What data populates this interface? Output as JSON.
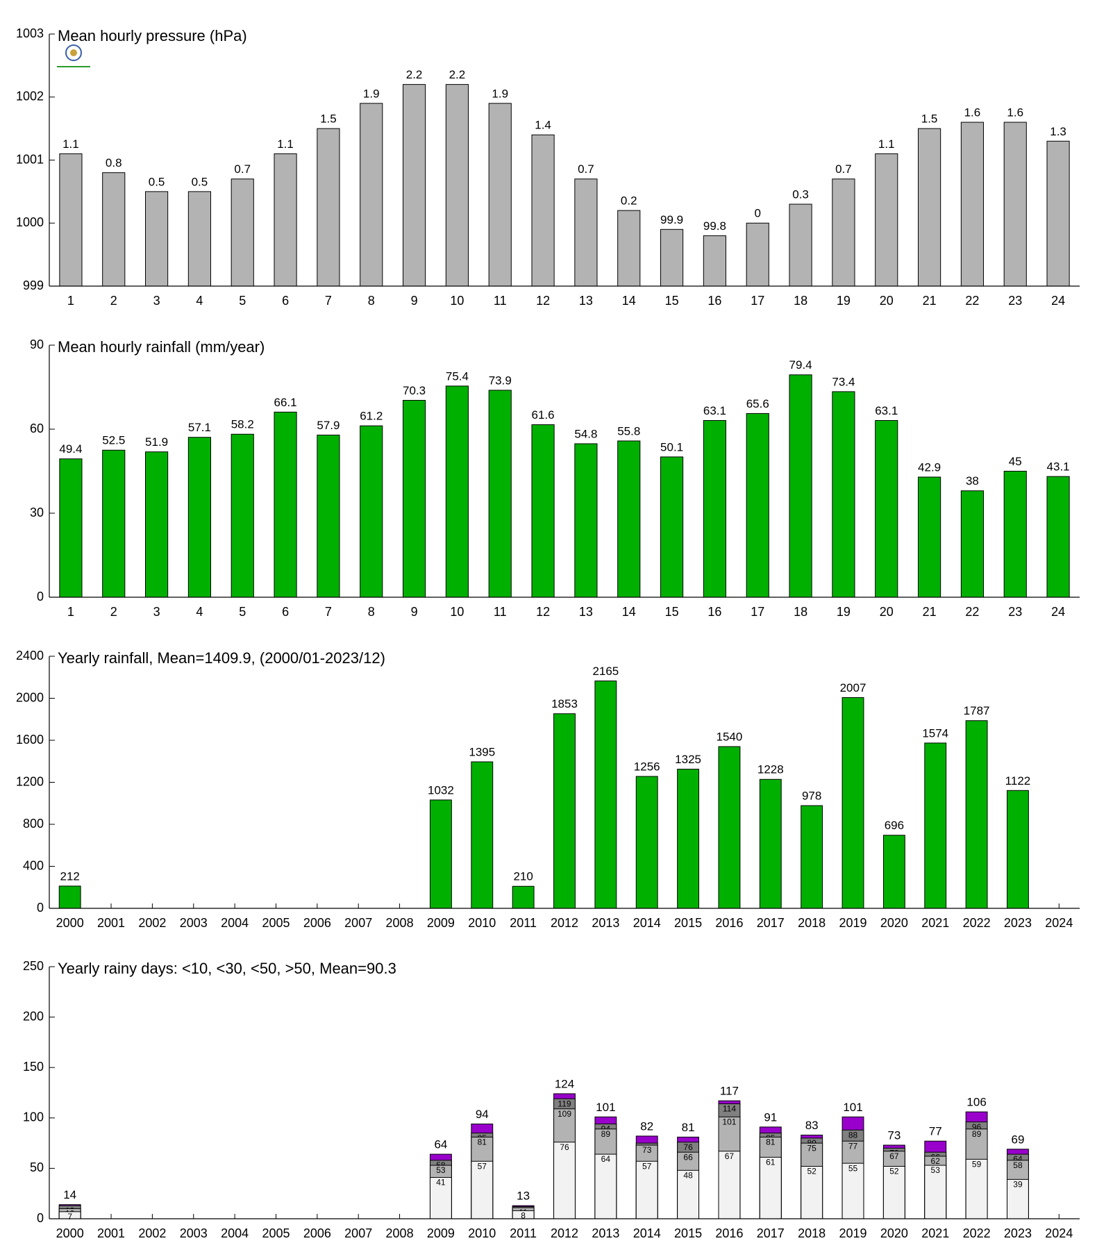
{
  "chart_data": [
    {
      "type": "bar",
      "title": "Mean hourly pressure (hPa)",
      "categories": [
        "1",
        "2",
        "3",
        "4",
        "5",
        "6",
        "7",
        "8",
        "9",
        "10",
        "11",
        "12",
        "13",
        "14",
        "15",
        "16",
        "17",
        "18",
        "19",
        "20",
        "21",
        "22",
        "23",
        "24"
      ],
      "values": [
        1001.1,
        1000.8,
        1000.5,
        1000.5,
        1000.7,
        1001.1,
        1001.5,
        1001.9,
        1002.2,
        1002.2,
        1001.9,
        1001.4,
        1000.7,
        1000.2,
        999.9,
        999.8,
        1000.0,
        1000.3,
        1000.7,
        1001.1,
        1001.5,
        1001.6,
        1001.6,
        1001.3
      ],
      "value_labels": [
        "1.1",
        "0.8",
        "0.5",
        "0.5",
        "0.7",
        "1.1",
        "1.5",
        "1.9",
        "2.2",
        "2.2",
        "1.9",
        "1.4",
        "0.7",
        "0.2",
        "99.9",
        "99.8",
        "0",
        "0.3",
        "0.7",
        "1.1",
        "1.5",
        "1.6",
        "1.6",
        "1.3"
      ],
      "color": "#b3b3b3",
      "ylim": [
        999,
        1003
      ],
      "yticks": [
        999,
        1000,
        1001,
        1002,
        1003
      ]
    },
    {
      "type": "bar",
      "title": "Mean hourly rainfall (mm/year)",
      "categories": [
        "1",
        "2",
        "3",
        "4",
        "5",
        "6",
        "7",
        "8",
        "9",
        "10",
        "11",
        "12",
        "13",
        "14",
        "15",
        "16",
        "17",
        "18",
        "19",
        "20",
        "21",
        "22",
        "23",
        "24"
      ],
      "values": [
        49.4,
        52.5,
        51.9,
        57.1,
        58.2,
        66.1,
        57.9,
        61.2,
        70.3,
        75.4,
        73.9,
        61.6,
        54.8,
        55.8,
        50.1,
        63.1,
        65.6,
        79.4,
        73.4,
        63.1,
        42.9,
        38,
        45,
        43.1
      ],
      "color": "#00b000",
      "ylim": [
        0,
        90
      ],
      "yticks": [
        0,
        30,
        60,
        90
      ]
    },
    {
      "type": "bar",
      "title": "Yearly rainfall, Mean=1409.9, (2000/01-2023/12)",
      "categories": [
        "2000",
        "2001",
        "2002",
        "2003",
        "2004",
        "2005",
        "2006",
        "2007",
        "2008",
        "2009",
        "2010",
        "2011",
        "2012",
        "2013",
        "2014",
        "2015",
        "2016",
        "2017",
        "2018",
        "2019",
        "2020",
        "2021",
        "2022",
        "2023",
        "2024"
      ],
      "values": [
        212,
        null,
        null,
        null,
        null,
        null,
        null,
        null,
        null,
        1032,
        1395,
        210,
        1853,
        2165,
        1256,
        1325,
        1540,
        1228,
        978,
        2007,
        696,
        1574,
        1787,
        1122,
        null
      ],
      "color": "#00b000",
      "ylim": [
        0,
        2400
      ],
      "yticks": [
        0,
        400,
        800,
        1200,
        1600,
        2000,
        2400
      ]
    },
    {
      "type": "overlay",
      "title": "Yearly rainy days: <10, <30, <50, >50, Mean=90.3",
      "categories": [
        "2000",
        "2001",
        "2002",
        "2003",
        "2004",
        "2005",
        "2006",
        "2007",
        "2008",
        "2009",
        "2010",
        "2011",
        "2012",
        "2013",
        "2014",
        "2015",
        "2016",
        "2017",
        "2018",
        "2019",
        "2020",
        "2021",
        "2022",
        "2023",
        "2024"
      ],
      "values": [
        14,
        null,
        null,
        null,
        null,
        null,
        null,
        null,
        null,
        64,
        94,
        13,
        124,
        101,
        82,
        81,
        117,
        91,
        83,
        101,
        73,
        77,
        106,
        69,
        null
      ],
      "color": "#9900cc",
      "series": [
        {
          "color": "#f2f2f2",
          "values": [
            7,
            null,
            null,
            null,
            null,
            null,
            null,
            null,
            null,
            41,
            57,
            8,
            76,
            64,
            57,
            48,
            67,
            61,
            52,
            55,
            52,
            53,
            59,
            39,
            null
          ]
        },
        {
          "color": "#b3b3b3",
          "values": [
            10,
            null,
            null,
            null,
            null,
            null,
            null,
            null,
            null,
            53,
            81,
            11,
            109,
            89,
            73,
            66,
            101,
            81,
            75,
            77,
            67,
            62,
            89,
            58,
            null
          ]
        },
        {
          "color": "#808080",
          "values": [
            13,
            null,
            null,
            null,
            null,
            null,
            null,
            null,
            null,
            58,
            85,
            12,
            119,
            94,
            75,
            76,
            114,
            85,
            80,
            88,
            70,
            66,
            96,
            64,
            null
          ]
        }
      ],
      "ylim": [
        0,
        250
      ],
      "yticks": [
        0,
        50,
        100,
        150,
        200,
        250
      ]
    }
  ]
}
